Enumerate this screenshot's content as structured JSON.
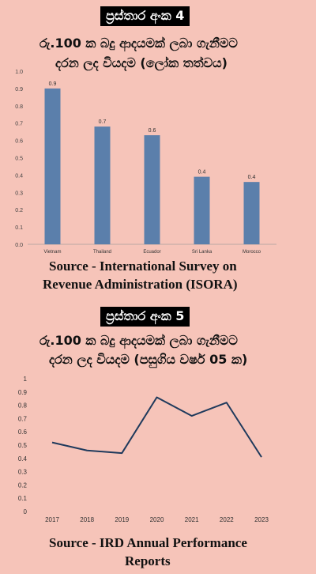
{
  "chart1": {
    "label": "ප්‍රස්තාර අංක 4",
    "title_line1": "රු.100 ක බදු ආදයමක් ලබා ගැනීමට",
    "title_line2": "දරන ලද වියදම (ලෝක තත්වය)",
    "source_line1": "Source - International Survey on",
    "source_line2": "Revenue Administration (ISORA)"
  },
  "chart2": {
    "label": "ප්‍රස්තාර අංක 5",
    "title_line1": "රු.100 ක බදු ආදයමක් ලබා ගැනීමට",
    "title_line2": "දරන ලද වියදම (පසුගිය වර්ෂ 05 ක)",
    "source_line1": "Source - IRD Annual Performance",
    "source_line2": "Reports"
  },
  "colors": {
    "background": "#f6c4b9",
    "bar": "#5b7fab",
    "line": "#1f3a5c"
  },
  "chart_data": [
    {
      "type": "bar",
      "categories": [
        "Vietnam",
        "Thailand",
        "Ecuador",
        "Sri Lanka",
        "Morocco"
      ],
      "values": [
        0.9,
        0.68,
        0.63,
        0.39,
        0.36
      ],
      "data_labels": [
        "0.9",
        "0.7",
        "0.6",
        "0.4",
        "0.4"
      ],
      "ylim": [
        0,
        1
      ],
      "yticks": [
        "0.0",
        "0.1",
        "0.2",
        "0.3",
        "0.4",
        "0.5",
        "0.6",
        "0.7",
        "0.8",
        "0.9",
        "1.0"
      ],
      "grid": false
    },
    {
      "type": "line",
      "x": [
        "2017",
        "2018",
        "2019",
        "2020",
        "2021",
        "2022",
        "2023"
      ],
      "values": [
        0.52,
        0.46,
        0.44,
        0.86,
        0.72,
        0.82,
        0.41
      ],
      "ylim": [
        0,
        1
      ],
      "yticks": [
        "0",
        "0.1",
        "0.2",
        "0.3",
        "0.4",
        "0.5",
        "0.6",
        "0.7",
        "0.8",
        "0.9",
        "1"
      ],
      "grid": false
    }
  ]
}
